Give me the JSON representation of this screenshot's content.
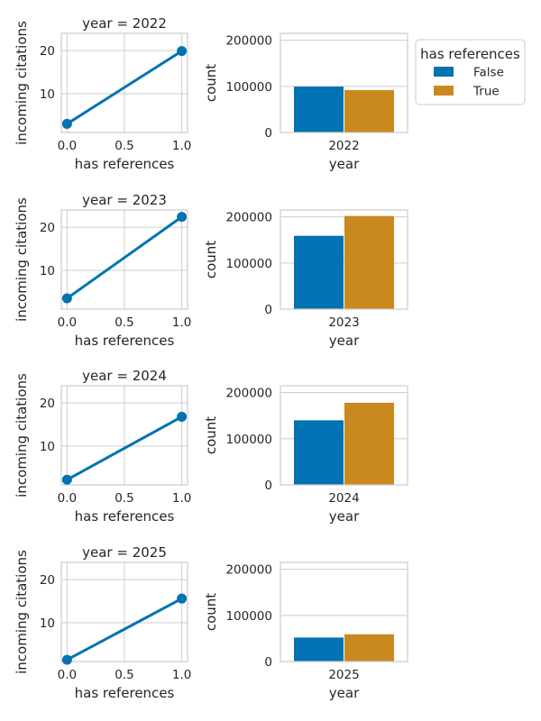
{
  "colors": {
    "false": "#0173b2",
    "true": "#c9891f",
    "grid": "#cccccc",
    "frame": "#cccccc",
    "text": "#262626"
  },
  "legend": {
    "title": "has references",
    "items": [
      "False",
      "True"
    ],
    "placement": "right"
  },
  "chart_data": [
    {
      "type": "line",
      "title": "year = 2022",
      "xlabel": "has references",
      "ylabel": "incoming citations",
      "x": [
        0,
        1
      ],
      "y": [
        3.0,
        19.9
      ],
      "xticks": [
        "0.0",
        "0.5",
        "1.0"
      ],
      "yticks": [
        "10",
        "20"
      ],
      "xlim": [
        -0.05,
        1.05
      ],
      "ylim": [
        1.0,
        24.0
      ],
      "grid": true
    },
    {
      "type": "bar",
      "xlabel": "year",
      "ylabel": "count",
      "categories": [
        "2022"
      ],
      "series": [
        {
          "name": "False",
          "values": [
            99500
          ]
        },
        {
          "name": "True",
          "values": [
            92000
          ]
        }
      ],
      "yticks": [
        "0",
        "100000",
        "200000"
      ],
      "ylim": [
        0,
        215000
      ],
      "grid": true
    },
    {
      "type": "line",
      "title": "year = 2023",
      "xlabel": "has references",
      "ylabel": "incoming citations",
      "x": [
        0,
        1
      ],
      "y": [
        3.5,
        22.4
      ],
      "xticks": [
        "0.0",
        "0.5",
        "1.0"
      ],
      "yticks": [
        "10",
        "20"
      ],
      "xlim": [
        -0.05,
        1.05
      ],
      "ylim": [
        1.0,
        24.0
      ],
      "grid": true
    },
    {
      "type": "bar",
      "xlabel": "year",
      "ylabel": "count",
      "categories": [
        "2023"
      ],
      "series": [
        {
          "name": "False",
          "values": [
            159000
          ]
        },
        {
          "name": "True",
          "values": [
            202000
          ]
        }
      ],
      "yticks": [
        "0",
        "100000",
        "200000"
      ],
      "ylim": [
        0,
        215000
      ],
      "grid": true
    },
    {
      "type": "line",
      "title": "year = 2024",
      "xlabel": "has references",
      "ylabel": "incoming citations",
      "x": [
        0,
        1
      ],
      "y": [
        2.2,
        16.8
      ],
      "xticks": [
        "0.0",
        "0.5",
        "1.0"
      ],
      "yticks": [
        "10",
        "20"
      ],
      "xlim": [
        -0.05,
        1.05
      ],
      "ylim": [
        1.0,
        24.0
      ],
      "grid": true
    },
    {
      "type": "bar",
      "xlabel": "year",
      "ylabel": "count",
      "categories": [
        "2024"
      ],
      "series": [
        {
          "name": "False",
          "values": [
            140000
          ]
        },
        {
          "name": "True",
          "values": [
            178000
          ]
        }
      ],
      "yticks": [
        "0",
        "100000",
        "200000"
      ],
      "ylim": [
        0,
        215000
      ],
      "grid": true
    },
    {
      "type": "line",
      "title": "year = 2025",
      "xlabel": "has references",
      "ylabel": "incoming citations",
      "x": [
        0,
        1
      ],
      "y": [
        1.4,
        15.6
      ],
      "xticks": [
        "0.0",
        "0.5",
        "1.0"
      ],
      "yticks": [
        "10",
        "20"
      ],
      "xlim": [
        -0.05,
        1.05
      ],
      "ylim": [
        1.0,
        24.0
      ],
      "grid": true
    },
    {
      "type": "bar",
      "xlabel": "year",
      "ylabel": "count",
      "categories": [
        "2025"
      ],
      "series": [
        {
          "name": "False",
          "values": [
            52000
          ]
        },
        {
          "name": "True",
          "values": [
            59000
          ]
        }
      ],
      "yticks": [
        "0",
        "100000",
        "200000"
      ],
      "ylim": [
        0,
        215000
      ],
      "grid": true
    }
  ]
}
